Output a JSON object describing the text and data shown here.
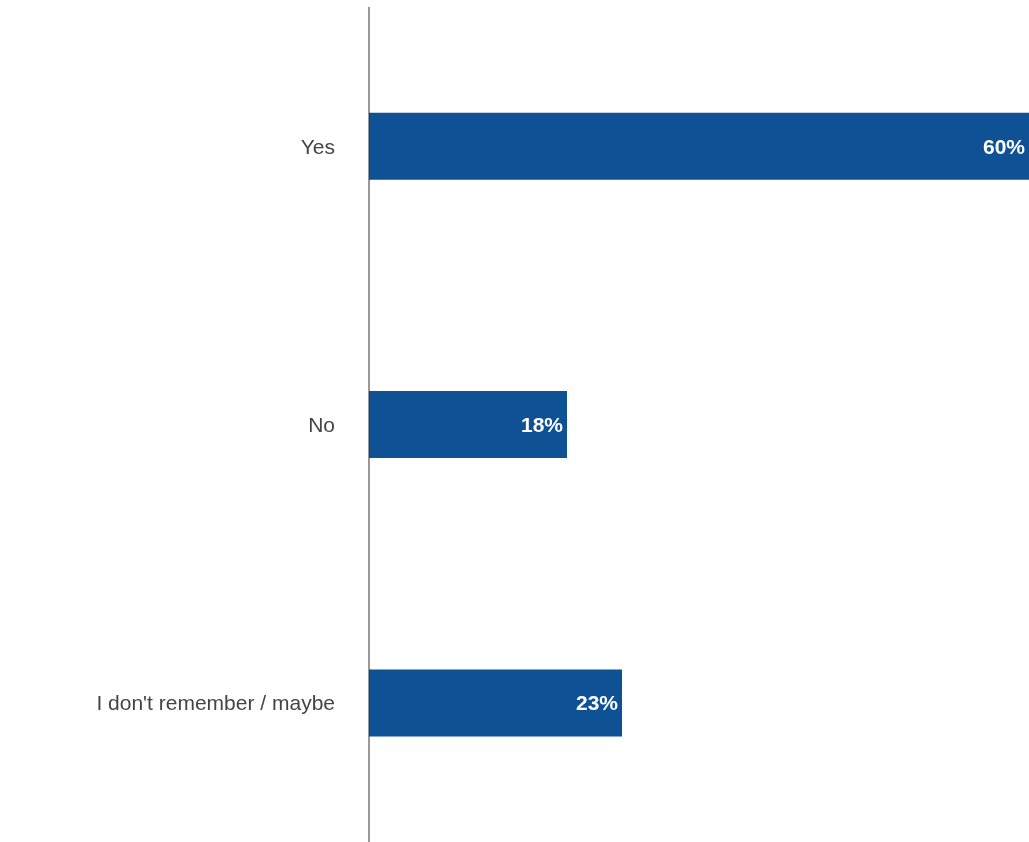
{
  "chart_data": {
    "type": "bar",
    "orientation": "horizontal",
    "categories": [
      "Yes",
      "No",
      "I don't remember / maybe"
    ],
    "values": [
      60,
      18,
      23
    ],
    "color": "#0e5194",
    "value_labels": [
      "60%",
      "18%",
      "23%"
    ]
  }
}
